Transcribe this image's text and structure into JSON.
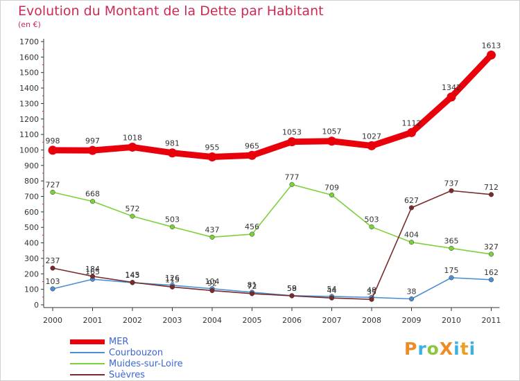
{
  "title": "Evolution du Montant de la Dette par Habitant",
  "subtitle": "(en €)",
  "logo": "ProXiti",
  "chart_data": {
    "type": "line",
    "title": "Evolution du Montant de la Dette par Habitant",
    "ylabel": "(en €)",
    "xlabel": "",
    "x": [
      "2000",
      "2001",
      "2002",
      "2003",
      "2004",
      "2005",
      "2006",
      "2007",
      "2008",
      "2009",
      "2010",
      "2011"
    ],
    "yticks": [
      "0",
      "100",
      "200",
      "300",
      "400",
      "500",
      "600",
      "700",
      "800",
      "900",
      "1000",
      "1100",
      "1200",
      "1300",
      "1400",
      "1500",
      "1600",
      "1700"
    ],
    "ylim": [
      0,
      1700
    ],
    "grid": false,
    "legend": "bottom-left",
    "series": [
      {
        "name": "MER",
        "color": "#e8000b",
        "labels": true,
        "values": [
          998,
          997,
          1018,
          981,
          955,
          965,
          1053,
          1057,
          1027,
          1112,
          1342,
          1613
        ]
      },
      {
        "name": "Courbouzon",
        "color": "#4a8fd4",
        "labels": true,
        "values": [
          103,
          165,
          143,
          126,
          104,
          81,
          59,
          54,
          48,
          38,
          175,
          162
        ]
      },
      {
        "name": "Muides-sur-Loire",
        "color": "#7cd13a",
        "labels": true,
        "values": [
          727,
          668,
          572,
          503,
          437,
          456,
          777,
          709,
          503,
          404,
          365,
          327
        ]
      },
      {
        "name": "Suèvres",
        "color": "#7a2a2a",
        "labels": true,
        "values": [
          237,
          184,
          145,
          115,
          92,
          72,
          58,
          44,
          35,
          627,
          737,
          712
        ]
      }
    ]
  }
}
